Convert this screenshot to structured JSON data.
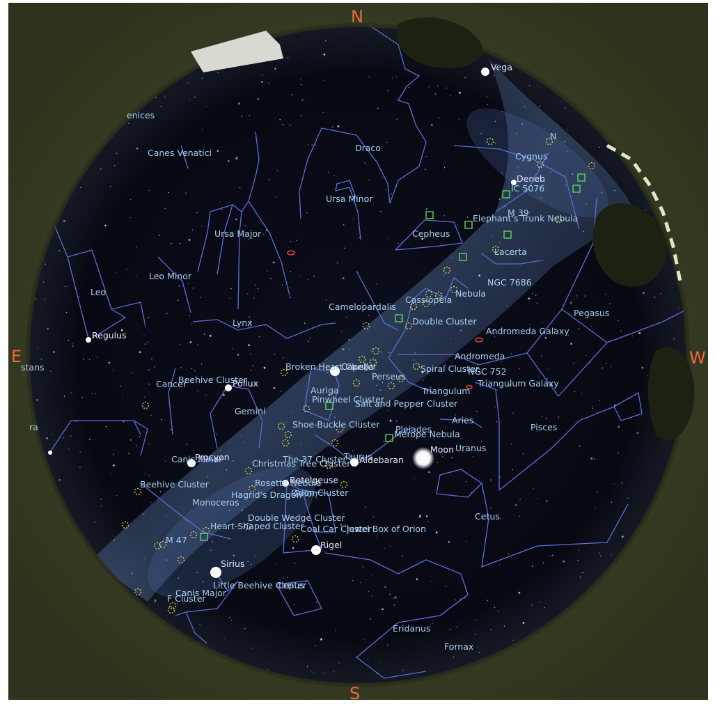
{
  "cardinals": {
    "north": "N",
    "south": "S",
    "east": "E",
    "west": "W"
  },
  "constellations": [
    {
      "id": "canes-venatici",
      "label": "Canes Venatici"
    },
    {
      "id": "draco",
      "label": "Draco"
    },
    {
      "id": "cygnus",
      "label": "Cygnus"
    },
    {
      "id": "ursa-minor",
      "label": "Ursa Minor"
    },
    {
      "id": "ursa-major",
      "label": "Ursa Major"
    },
    {
      "id": "cepheus",
      "label": "Cepheus"
    },
    {
      "id": "lacerta",
      "label": "Lacerta"
    },
    {
      "id": "leo-minor",
      "label": "Leo Minor"
    },
    {
      "id": "leo",
      "label": "Leo"
    },
    {
      "id": "cassiopeia",
      "label": "Cassiopeia"
    },
    {
      "id": "camelopardalis",
      "label": "Camelopardalis"
    },
    {
      "id": "lynx",
      "label": "Lynx"
    },
    {
      "id": "pegasus",
      "label": "Pegasus"
    },
    {
      "id": "andromeda",
      "label": "Andromeda"
    },
    {
      "id": "perseus",
      "label": "Perseus"
    },
    {
      "id": "cancer",
      "label": "Cancer"
    },
    {
      "id": "auriga",
      "label": "Auriga"
    },
    {
      "id": "triangulum",
      "label": "Triangulum"
    },
    {
      "id": "gemini",
      "label": "Gemini"
    },
    {
      "id": "aries",
      "label": "Aries"
    },
    {
      "id": "pisces",
      "label": "Pisces"
    },
    {
      "id": "taurus",
      "label": "Taurus"
    },
    {
      "id": "monoceros",
      "label": "Monoceros"
    },
    {
      "id": "orion",
      "label": "Orion"
    },
    {
      "id": "cetus",
      "label": "Cetus"
    },
    {
      "id": "lepus",
      "label": "Lepus"
    },
    {
      "id": "canis-major",
      "label": "Canis Major"
    },
    {
      "id": "eridanus",
      "label": "Eridanus"
    },
    {
      "id": "fornax",
      "label": "Fornax"
    },
    {
      "id": "canis-minor",
      "label": "Canis Minor"
    }
  ],
  "stars": [
    {
      "id": "vega",
      "label": "Vega"
    },
    {
      "id": "deneb",
      "label": "Deneb"
    },
    {
      "id": "regulus",
      "label": "Regulus"
    },
    {
      "id": "capella",
      "label": "Capella"
    },
    {
      "id": "pollux",
      "label": "Pollux"
    },
    {
      "id": "procyon",
      "label": "Procyon"
    },
    {
      "id": "aldebaran",
      "label": "Aldebaran"
    },
    {
      "id": "betelgeuse",
      "label": "Betelgeuse"
    },
    {
      "id": "rigel",
      "label": "Rigel"
    },
    {
      "id": "sirius",
      "label": "Sirius"
    }
  ],
  "bodies": [
    {
      "id": "moon",
      "label": "Moon"
    },
    {
      "id": "uranus",
      "label": "Uranus"
    }
  ],
  "deep_sky": [
    {
      "id": "ic-5076",
      "label": "IC 5076"
    },
    {
      "id": "m39",
      "label": "M 39"
    },
    {
      "id": "elephants-trunk",
      "label": "Elephant's Trunk Nebula"
    },
    {
      "id": "ngc-7686",
      "label": "NGC 7686"
    },
    {
      "id": "bubble-nebula",
      "label": "Nebula"
    },
    {
      "id": "double-cluster",
      "label": "Double Cluster"
    },
    {
      "id": "andromeda-galaxy",
      "label": "Andromeda Galaxy"
    },
    {
      "id": "broken-heart",
      "label": "Broken Heart Cluster"
    },
    {
      "id": "spiral-cluster",
      "label": "Spiral Cluster"
    },
    {
      "id": "ngc-752",
      "label": "NGC 752"
    },
    {
      "id": "triangulum-galaxy",
      "label": "Triangulum Galaxy"
    },
    {
      "id": "beehive-cluster-1",
      "label": "Beehive Cluster"
    },
    {
      "id": "salt-pepper",
      "label": "Salt and Pepper Cluster"
    },
    {
      "id": "pinwheel",
      "label": "Pinwheel Cluster"
    },
    {
      "id": "shoe-buckle",
      "label": "Shoe-Buckle Cluster"
    },
    {
      "id": "merope-nebula",
      "label": "Merope Nebula"
    },
    {
      "id": "pleiades",
      "label": "Pleiades"
    },
    {
      "id": "christmas-tree",
      "label": "Christmas Tree Cluster"
    },
    {
      "id": "the-37-cluster",
      "label": "The 37 Cluster"
    },
    {
      "id": "beehive-cluster-2",
      "label": "Beehive Cluster"
    },
    {
      "id": "rosette-nebula",
      "label": "Rosette Nebula"
    },
    {
      "id": "hagrids-dragon",
      "label": "Hagrid's Dragon"
    },
    {
      "id": "orion-cluster",
      "label": "Orion Cluster"
    },
    {
      "id": "double-wedge",
      "label": "Double Wedge Cluster"
    },
    {
      "id": "heart-shaped",
      "label": "Heart-Shaped Cluster"
    },
    {
      "id": "coal-car",
      "label": "Coal Car Cluster"
    },
    {
      "id": "jewel-box-orion",
      "label": "Jewel Box of Orion"
    },
    {
      "id": "m47",
      "label": "M 47"
    },
    {
      "id": "little-beehive",
      "label": "Little Beehive Cluster"
    },
    {
      "id": "fm-cluster",
      "label": "F Cluster"
    }
  ],
  "edge_labels": [
    {
      "id": "berenices",
      "label": "enices"
    },
    {
      "id": "serpens",
      "label": "stans"
    },
    {
      "id": "hydra",
      "label": "ra"
    },
    {
      "id": "north-marker",
      "label": "N"
    }
  ],
  "colors": {
    "sky": "#080a14",
    "constellation_lines": "#5a6fd8",
    "labels": "#a8cff0",
    "cardinals": "#ee6a3c",
    "clusters": "#d8d24a",
    "nebulae": "#5ad85a",
    "galaxies": "#e6402e",
    "ground": "#3c4226"
  },
  "icons": {
    "open-cluster": "dashed-circle-icon",
    "nebula": "square-icon",
    "galaxy": "ellipse-icon",
    "star": "star-dot-icon"
  }
}
